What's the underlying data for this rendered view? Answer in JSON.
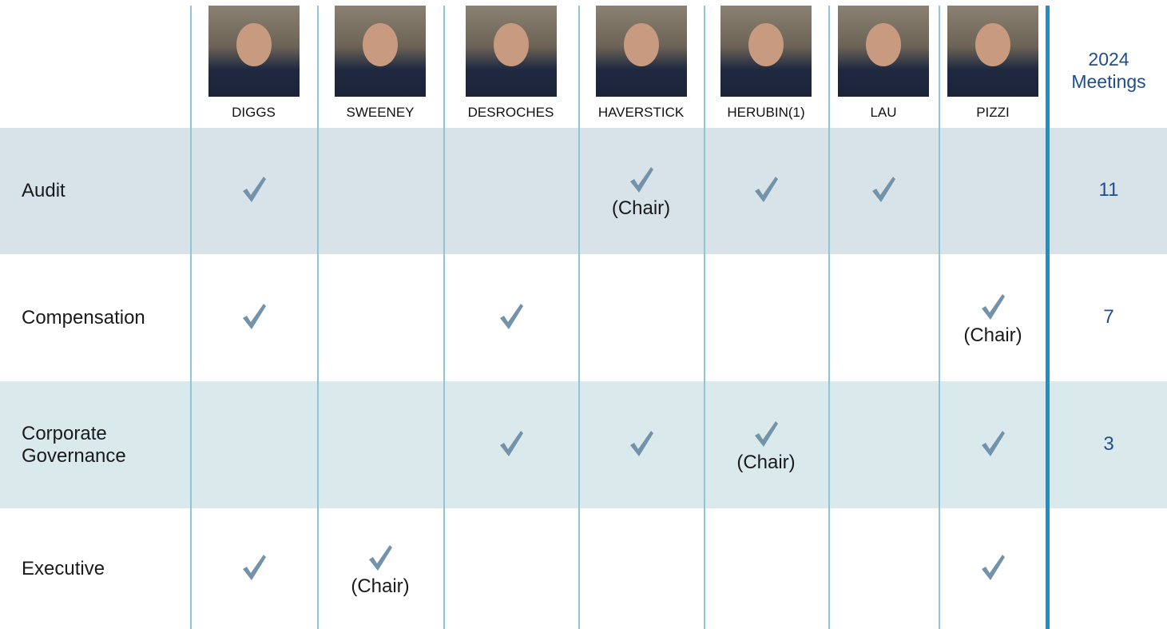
{
  "header": {
    "meetings_label": "2024 Meetings"
  },
  "directors": [
    "DIGGS",
    "SWEENEY",
    "DESROCHES",
    "HAVERSTICK",
    "HERUBIN(1)",
    "LAU",
    "PIZZI"
  ],
  "committees": [
    {
      "name": "Audit",
      "members": [
        true,
        null,
        null,
        "(Chair)",
        true,
        true,
        null
      ],
      "meetings": 11
    },
    {
      "name": "Compensation",
      "members": [
        true,
        null,
        true,
        null,
        null,
        null,
        "(Chair)"
      ],
      "meetings": 7
    },
    {
      "name": "Corporate Governance",
      "members": [
        null,
        null,
        true,
        true,
        "(Chair)",
        null,
        true
      ],
      "meetings": 3
    },
    {
      "name": "Executive",
      "members": [
        true,
        "(Chair)",
        null,
        null,
        null,
        null,
        true
      ],
      "meetings": null
    }
  ]
}
